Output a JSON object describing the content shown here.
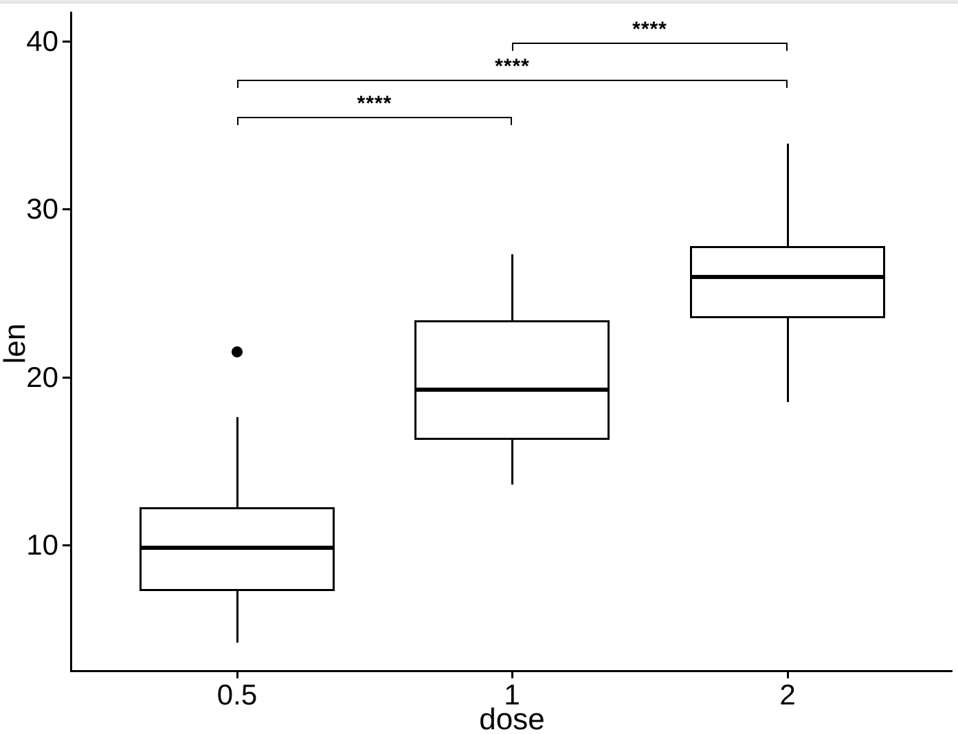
{
  "page": {
    "background": "#ffffff",
    "top_strip_color": "#e9e9e9"
  },
  "chart_data": {
    "type": "boxplot",
    "title": "",
    "xlabel": "dose",
    "ylabel": "len",
    "categories": [
      "0.5",
      "1",
      "2"
    ],
    "y_ticks": [
      10,
      20,
      30,
      40
    ],
    "ylim": [
      2.4,
      41.7
    ],
    "grid": false,
    "legend": false,
    "stroke_color": "#000000",
    "box_fill_color": "#ffffff",
    "boxes": [
      {
        "category": "0.5",
        "whisker_low": 4.2,
        "q1": 7.25,
        "median": 9.85,
        "q3": 12.25,
        "whisker_high": 17.6,
        "outliers": [
          21.5
        ]
      },
      {
        "category": "1",
        "whisker_low": 13.6,
        "q1": 16.25,
        "median": 19.25,
        "q3": 23.4,
        "whisker_high": 27.3,
        "outliers": []
      },
      {
        "category": "2",
        "whisker_low": 18.5,
        "q1": 23.5,
        "median": 25.95,
        "q3": 27.8,
        "whisker_high": 33.9,
        "outliers": []
      }
    ],
    "comparisons": [
      {
        "group1": "0.5",
        "group2": "1",
        "label": "****",
        "y": 35.5
      },
      {
        "group1": "0.5",
        "group2": "2",
        "label": "****",
        "y": 37.7
      },
      {
        "group1": "1",
        "group2": "2",
        "label": "****",
        "y": 39.9
      }
    ]
  }
}
